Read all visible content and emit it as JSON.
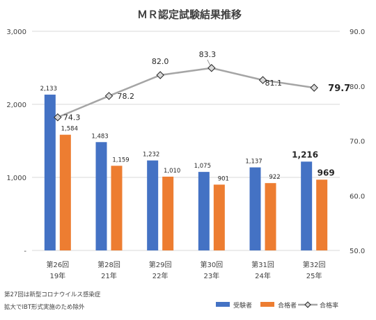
{
  "chart_data": {
    "type": "bar",
    "title": "ＭＲ認定試験結果推移",
    "categories": [
      {
        "round": "第26回",
        "year": "19年"
      },
      {
        "round": "第28回",
        "year": "21年"
      },
      {
        "round": "第29回",
        "year": "22年"
      },
      {
        "round": "第30回",
        "year": "23年"
      },
      {
        "round": "第31回",
        "year": "24年"
      },
      {
        "round": "第32回",
        "year": "25年"
      }
    ],
    "series": [
      {
        "name": "受験者",
        "kind": "bar",
        "color": "#4472C4",
        "axis": "left",
        "values": [
          2133,
          1483,
          1232,
          1075,
          1137,
          1216
        ],
        "labels": [
          "2,133",
          "1,483",
          "1,232",
          "1,075",
          "1,137",
          "1,216"
        ]
      },
      {
        "name": "合格者",
        "kind": "bar",
        "color": "#ED7D31",
        "axis": "left",
        "values": [
          1584,
          1159,
          1010,
          901,
          922,
          969
        ],
        "labels": [
          "1,584",
          "1,159",
          "1,010",
          "901",
          "922",
          "969"
        ]
      },
      {
        "name": "合格率",
        "kind": "line",
        "color": "#A5A5A5",
        "axis": "right",
        "values": [
          74.3,
          78.2,
          82.0,
          83.3,
          81.1,
          79.7
        ],
        "labels": [
          "74.3",
          "78.2",
          "82.0",
          "83.3",
          "81.1",
          "79.7"
        ]
      }
    ],
    "y_left": {
      "min": 0,
      "max": 3000,
      "ticks": [
        0,
        1000,
        2000,
        3000
      ],
      "tick_labels": [
        "-",
        "1,000",
        "2,000",
        "3,000"
      ]
    },
    "y_right": {
      "min": 50,
      "max": 90,
      "ticks": [
        50,
        60,
        70,
        80,
        90
      ],
      "tick_labels": [
        "50.0",
        "60.0",
        "70.0",
        "80.0",
        "90.0"
      ]
    },
    "grid": true,
    "legend_position": "bottom-right"
  },
  "notes": [
    "第27回は新型コロナウイルス感染症",
    "拡大でIBT形式実施のため除外"
  ]
}
